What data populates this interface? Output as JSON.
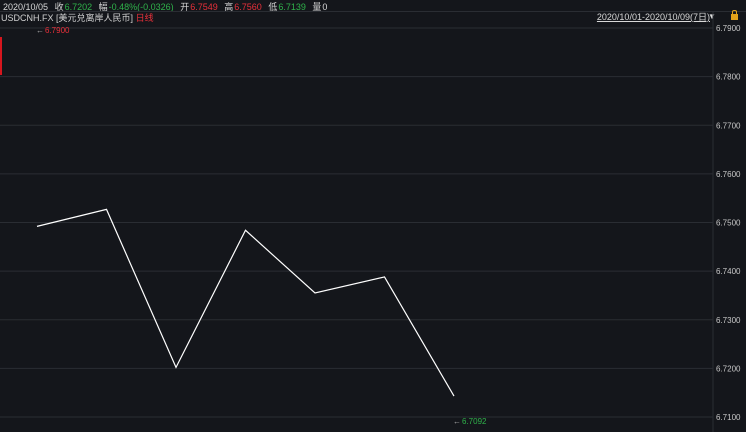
{
  "header": {
    "date": "2020/10/05",
    "close_label": "收",
    "close": "6.7202",
    "change_label": "幅",
    "change": "-0.48%(-0.0326)",
    "open_label": "开",
    "open": "6.7549",
    "high_label": "高",
    "high": "6.7560",
    "low_label": "低",
    "low": "6.7139",
    "volume_label": "量",
    "volume": "0"
  },
  "symbol": {
    "code": "USDCNH.FX",
    "name": "[美元兑离岸人民币]",
    "period": "日线"
  },
  "range": {
    "label": "2020/10/01-2020/10/09(7日)"
  },
  "colors": {
    "up": "#e8303a",
    "down": "#2fb24a",
    "line": "#ffffff",
    "background": "#14161b",
    "grid": "#2a2d33"
  },
  "chart_data": {
    "type": "line",
    "title": "",
    "y_ticks": [
      "6.7900",
      "6.7800",
      "6.7700",
      "6.7600",
      "6.7500",
      "6.7400",
      "6.7300",
      "6.7200",
      "6.7100"
    ],
    "ylim": [
      6.71,
      6.79
    ],
    "values": [
      6.7492,
      6.7527,
      6.7202,
      6.7484,
      6.7355,
      6.7388,
      6.7143
    ],
    "grid": true,
    "max_marker": "6.7900",
    "min_marker": "6.7092"
  }
}
